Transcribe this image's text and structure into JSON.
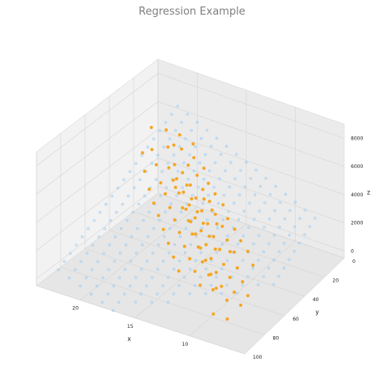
{
  "chart_data": {
    "type": "scatter",
    "projection": "3d",
    "title": "Regression Example",
    "xlabel": "x",
    "ylabel": "y",
    "zlabel": "z",
    "x_ticks": [
      "10",
      "15",
      "20"
    ],
    "y_ticks": [
      "0",
      "20",
      "40",
      "60",
      "80",
      "100"
    ],
    "z_ticks": [
      "0",
      "2000",
      "4000",
      "6000",
      "8000"
    ],
    "xlim": [
      5,
      24
    ],
    "ylim": [
      0,
      100
    ],
    "zlim": [
      -500,
      9000
    ],
    "grid": true,
    "colors": {
      "observations": "#f5a623",
      "fitted_plane": "#9ecbf0",
      "pane": "#f2f2f2"
    },
    "fitted_plane": {
      "description": "regression surface evaluated on a grid",
      "x_range": [
        8,
        22
      ],
      "y_range": [
        0,
        100
      ],
      "intercept": -1000,
      "x_coef": 325,
      "y_coef": -50
    },
    "series": [
      {
        "marker": "filled",
        "points": [
          [
            21,
            18,
            5900
          ],
          [
            20,
            15,
            5600
          ],
          [
            19,
            22,
            5300
          ],
          [
            20,
            25,
            5400
          ],
          [
            18,
            20,
            4800
          ],
          [
            19,
            28,
            4600
          ],
          [
            18,
            30,
            4400
          ],
          [
            17,
            26,
            4200
          ],
          [
            18,
            35,
            4300
          ],
          [
            17,
            32,
            3900
          ],
          [
            16,
            30,
            3700
          ],
          [
            17,
            38,
            3800
          ],
          [
            16,
            36,
            3500
          ],
          [
            15,
            33,
            3300
          ],
          [
            16,
            42,
            3400
          ],
          [
            15,
            40,
            3100
          ],
          [
            14,
            37,
            2900
          ],
          [
            15,
            46,
            3000
          ],
          [
            14,
            44,
            2700
          ],
          [
            13,
            40,
            2500
          ],
          [
            14,
            50,
            2600
          ],
          [
            13,
            48,
            2300
          ],
          [
            12,
            45,
            2100
          ],
          [
            13,
            55,
            2200
          ],
          [
            12,
            52,
            1900
          ],
          [
            11,
            48,
            1700
          ],
          [
            12,
            60,
            1800
          ],
          [
            11,
            58,
            1500
          ],
          [
            10,
            55,
            1300
          ],
          [
            11,
            65,
            1400
          ],
          [
            10,
            62,
            1100
          ],
          [
            9,
            60,
            900
          ],
          [
            10,
            70,
            1000
          ],
          [
            9,
            68,
            700
          ],
          [
            8,
            65,
            500
          ],
          [
            9,
            75,
            600
          ],
          [
            8,
            72,
            300
          ],
          [
            19,
            40,
            4100
          ],
          [
            18,
            45,
            3900
          ],
          [
            17,
            50,
            3500
          ],
          [
            16,
            55,
            3200
          ],
          [
            15,
            60,
            2900
          ],
          [
            14,
            65,
            2500
          ],
          [
            13,
            70,
            2200
          ],
          [
            12,
            75,
            1900
          ],
          [
            11,
            80,
            1500
          ],
          [
            20,
            35,
            4800
          ],
          [
            19,
            50,
            4300
          ],
          [
            18,
            55,
            3900
          ],
          [
            17,
            60,
            3600
          ],
          [
            16,
            65,
            3200
          ],
          [
            15,
            70,
            2800
          ],
          [
            14,
            75,
            2400
          ],
          [
            13,
            80,
            2000
          ],
          [
            21,
            30,
            5300
          ],
          [
            20,
            45,
            5000
          ],
          [
            16,
            25,
            3800
          ],
          [
            15,
            28,
            3500
          ],
          [
            14,
            30,
            3100
          ],
          [
            13,
            35,
            2700
          ],
          [
            12,
            38,
            2400
          ],
          [
            11,
            42,
            2100
          ],
          [
            10,
            45,
            1800
          ],
          [
            9,
            50,
            1400
          ],
          [
            18,
            25,
            4600
          ],
          [
            17,
            20,
            4300
          ],
          [
            16,
            45,
            3300
          ],
          [
            15,
            50,
            3000
          ],
          [
            14,
            55,
            2700
          ],
          [
            13,
            60,
            2300
          ],
          [
            12,
            65,
            2000
          ],
          [
            11,
            70,
            1600
          ],
          [
            10,
            75,
            1200
          ],
          [
            19,
            33,
            4700
          ],
          [
            18,
            38,
            4400
          ],
          [
            17,
            42,
            4000
          ],
          [
            16,
            48,
            3600
          ],
          [
            15,
            52,
            3200
          ],
          [
            14,
            58,
            2900
          ],
          [
            13,
            62,
            2500
          ],
          [
            12,
            68,
            2100
          ],
          [
            11,
            72,
            1700
          ],
          [
            10,
            78,
            1300
          ],
          [
            20,
            20,
            5200
          ],
          [
            19,
            12,
            5000
          ],
          [
            17,
            35,
            4100
          ],
          [
            16,
            40,
            3700
          ],
          [
            15,
            44,
            3300
          ],
          [
            14,
            48,
            3000
          ],
          [
            13,
            52,
            2600
          ],
          [
            12,
            56,
            2200
          ],
          [
            22,
            22,
            6100
          ],
          [
            21,
            38,
            5600
          ],
          [
            8,
            85,
            200
          ],
          [
            9,
            88,
            500
          ],
          [
            17,
            45,
            4600
          ],
          [
            15,
            38,
            3800
          ],
          [
            13,
            45,
            3000
          ],
          [
            11,
            52,
            2000
          ],
          [
            14,
            40,
            3400
          ]
        ]
      }
    ]
  }
}
